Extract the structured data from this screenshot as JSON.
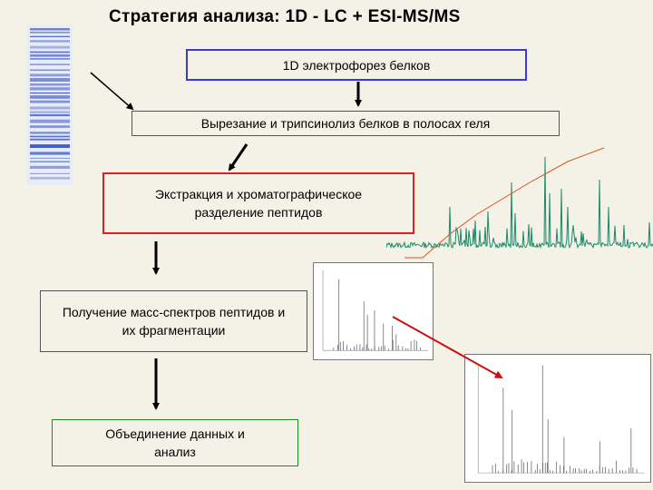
{
  "title": "Стратегия анализа:  1D - LC + ESI-MS/MS",
  "steps": [
    "1D электрофорез белков",
    "Вырезание и трипсинолиз белков в полосах геля",
    "Экстракция и хроматографическое разделение пептидов",
    "Получение масс-спектров пептидов и их фрагментации",
    "Объединение данных и анализ"
  ],
  "colors": {
    "background": "#f4f1e6",
    "box1_border": "#3a3ad0",
    "box3_border": "#e02020",
    "box5_border": "#1a8a1a",
    "chromatogram": "#1a8a6a",
    "gradient_line": "#e05020",
    "red_arrow": "#cc1010"
  },
  "icons": [
    "gel-image-icon",
    "chromatogram-icon",
    "mass-spectrum-icon",
    "fragment-spectrum-icon"
  ]
}
